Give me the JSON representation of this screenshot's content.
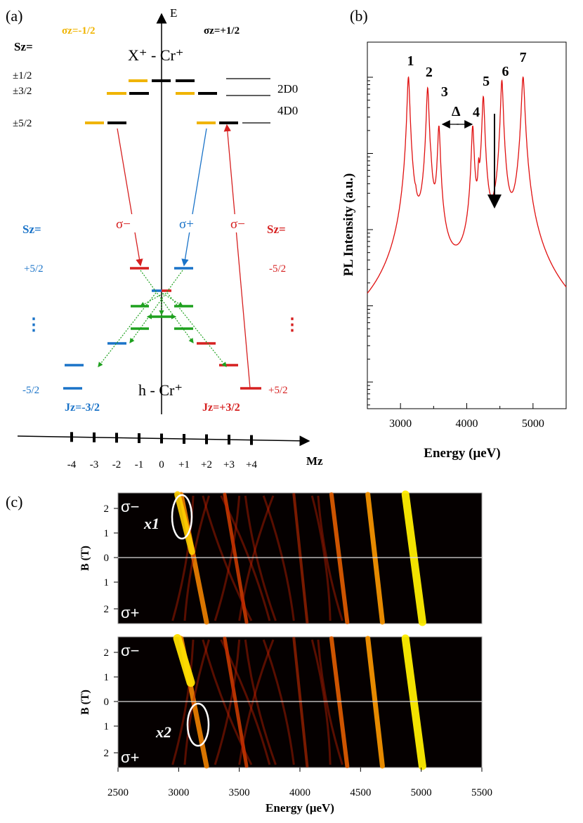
{
  "panel_a": {
    "label": "(a)",
    "axis_e": "E",
    "sigma_minus_top": "σz=-1/2",
    "sigma_plus_top": "σz=+1/2",
    "sz_left": "Sz=",
    "x_cr": "X⁺ - Cr⁺",
    "sz_rows": [
      "±1/2",
      "±3/2",
      "±5/2"
    ],
    "state_2d": "2D0",
    "state_4d": "4D0",
    "trans_sigma_minus": "σ−",
    "trans_sigma_plus": "σ+",
    "sz_blue": "Sz=",
    "sz_red": "Sz=",
    "plus52_left": "+5/2",
    "minus52_right": "-5/2",
    "dots": "⋮",
    "minus52_left": "-5/2",
    "plus52_right": "+5/2",
    "h_cr": "h - Cr⁺",
    "jz_minus": "Jz=-3/2",
    "jz_plus": "Jz=+3/2",
    "mz_ticks": [
      "-4",
      "-3",
      "-2",
      "-1",
      "0",
      "+1",
      "+2",
      "+3",
      "+4"
    ],
    "mz_label": "Mz",
    "colors": {
      "yellow": "#f0b400",
      "blue": "#1a73c8",
      "red": "#d62020",
      "green": "#1ea01e"
    }
  },
  "panel_b": {
    "label": "(b)",
    "chart_data": {
      "type": "line",
      "title": "",
      "xlabel": "Energy (μeV)",
      "ylabel": "PL Intensity (a.u.)",
      "xlim": [
        2500,
        5500
      ],
      "ylog": true,
      "xticks": [
        3000,
        4000,
        5000
      ],
      "peaks": [
        {
          "label": "1",
          "x": 3120
        },
        {
          "label": "2",
          "x": 3410
        },
        {
          "label": "3",
          "x": 3580
        },
        {
          "label": "4",
          "x": 4090
        },
        {
          "label": "5",
          "x": 4250
        },
        {
          "label": "6",
          "x": 4530
        },
        {
          "label": "7",
          "x": 4850
        }
      ],
      "delta_label": "Δ",
      "color": "#e01010"
    }
  },
  "panel_c": {
    "label": "(c)",
    "chart_data": [
      {
        "type": "heatmap",
        "ylabel": "B (T)",
        "yticks": [
          "2",
          "1",
          "0",
          "1",
          "2"
        ],
        "top_polarization": "σ−",
        "bottom_polarization": "σ+",
        "annotation": "x1"
      },
      {
        "type": "heatmap",
        "ylabel": "B (T)",
        "yticks": [
          "2",
          "1",
          "0",
          "1",
          "2"
        ],
        "top_polarization": "σ−",
        "bottom_polarization": "σ+",
        "annotation": "x2",
        "xlabel": "Energy (μeV)",
        "xticks": [
          "2500",
          "3000",
          "3500",
          "4000",
          "4500",
          "5000",
          "5500"
        ],
        "xlim": [
          2500,
          5500
        ]
      }
    ]
  }
}
